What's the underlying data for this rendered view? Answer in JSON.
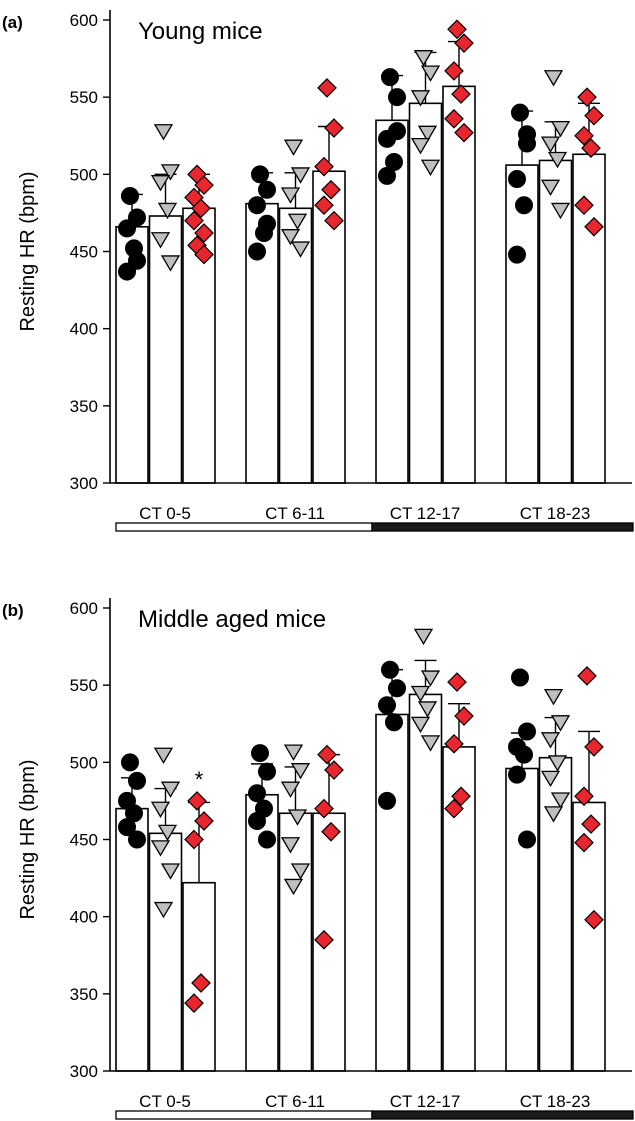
{
  "colors": {
    "group1": "#000000",
    "group2": "#bfbfbf",
    "group3": "#e8262d",
    "outline": "#000000",
    "dark_phase": "#1a1a1a",
    "light_phase": "#ffffff"
  },
  "markers": {
    "group1": "circle",
    "group2": "triangle-down",
    "group3": "diamond"
  },
  "chart_data": [
    {
      "type": "bar",
      "panel_letter": "(a)",
      "title": "Young mice",
      "ylabel": "Resting HR (bpm)",
      "xlabel": "",
      "ylim": [
        300,
        600
      ],
      "yticks": [
        "300",
        "350",
        "400",
        "450",
        "500",
        "550",
        "600"
      ],
      "categories": [
        "CT 0-5",
        "CT 6-11",
        "CT 12-17",
        "CT 18-23"
      ],
      "phase_bar": [
        "light",
        "light",
        "dark",
        "dark"
      ],
      "series": [
        {
          "means": [
            466,
            481,
            535,
            506
          ],
          "sd": [
            21,
            20,
            29,
            35
          ],
          "points": [
            [
              486,
              472,
              465,
              452,
              437,
              444
            ],
            [
              500,
              490,
              480,
              462,
              450,
              468
            ],
            [
              563,
              550,
              523,
              508,
              499,
              528
            ],
            [
              540,
              520,
              497,
              480,
              448,
              526
            ]
          ]
        },
        {
          "means": [
            473,
            478,
            546,
            509
          ],
          "sd": [
            27,
            23,
            33,
            25
          ],
          "points": [
            [
              528,
              502,
              495,
              477,
              458,
              443
            ],
            [
              518,
              500,
              487,
              470,
              460,
              452
            ],
            [
              576,
              566,
              550,
              527,
              519,
              505
            ],
            [
              563,
              530,
              520,
              510,
              492,
              477
            ]
          ]
        },
        {
          "means": [
            478,
            502,
            557,
            513
          ],
          "sd": [
            22,
            29,
            29,
            33
          ],
          "points": [
            [
              500,
              493,
              485,
              478,
              470,
              462,
              454,
              448
            ],
            [
              556,
              530,
              505,
              490,
              480,
              470
            ],
            [
              594,
              585,
              567,
              552,
              536,
              527
            ],
            [
              550,
              538,
              525,
              517,
              480,
              466
            ]
          ]
        }
      ]
    },
    {
      "type": "bar",
      "panel_letter": "(b)",
      "title": "Middle aged mice",
      "ylabel": "Resting HR (bpm)",
      "xlabel": "",
      "ylim": [
        300,
        600
      ],
      "yticks": [
        "300",
        "350",
        "400",
        "450",
        "500",
        "550",
        "600"
      ],
      "categories": [
        "CT 0-5",
        "CT 6-11",
        "CT 12-17",
        "CT 18-23"
      ],
      "phase_bar": [
        "light",
        "light",
        "dark",
        "dark"
      ],
      "annotation": "*",
      "annotation_category": 0,
      "annotation_series": 2,
      "series": [
        {
          "means": [
            470,
            479,
            531,
            496
          ],
          "sd": [
            20,
            20,
            29,
            23
          ],
          "points": [
            [
              500,
              488,
              475,
              467,
              458,
              450
            ],
            [
              506,
              494,
              480,
              470,
              462,
              450
            ],
            [
              560,
              548,
              537,
              526,
              475
            ],
            [
              555,
              520,
              510,
              505,
              492,
              450
            ]
          ]
        },
        {
          "means": [
            454,
            467,
            544,
            503
          ],
          "sd": [
            29,
            30,
            22,
            26
          ],
          "points": [
            [
              505,
              483,
              470,
              455,
              445,
              430,
              405
            ],
            [
              507,
              495,
              483,
              465,
              447,
              430,
              420
            ],
            [
              582,
              555,
              545,
              535,
              525,
              513
            ],
            [
              543,
              526,
              515,
              500,
              490,
              476,
              467
            ]
          ]
        },
        {
          "means": [
            422,
            467,
            510,
            474
          ],
          "sd": [
            52,
            38,
            28,
            46
          ],
          "points": [
            [
              475,
              462,
              450,
              357,
              344
            ],
            [
              505,
              495,
              470,
              455,
              385
            ],
            [
              552,
              530,
              512,
              478,
              470
            ],
            [
              556,
              510,
              478,
              460,
              448,
              398
            ]
          ]
        }
      ]
    }
  ]
}
